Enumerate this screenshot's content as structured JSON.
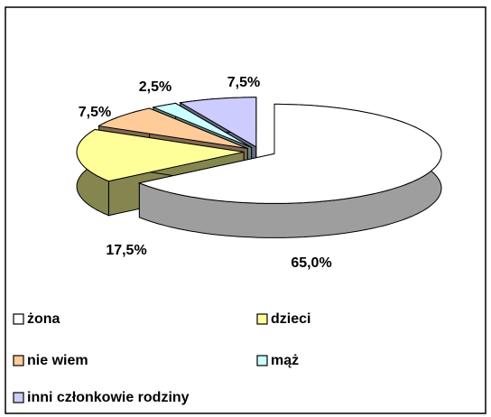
{
  "chart_data": {
    "type": "pie",
    "three_d": true,
    "exploded": true,
    "categories": [
      "żona",
      "dzieci",
      "nie wiem",
      "mąż",
      "inni członkowie rodziny"
    ],
    "values": [
      65.0,
      17.5,
      7.5,
      2.5,
      7.5
    ],
    "value_labels": [
      "65,0%",
      "17,5%",
      "7,5%",
      "2,5%",
      "7,5%"
    ],
    "colors": [
      "#ffffff",
      "#ffff99",
      "#ffcc99",
      "#ccffff",
      "#ccccff"
    ],
    "legend": "bottom"
  }
}
